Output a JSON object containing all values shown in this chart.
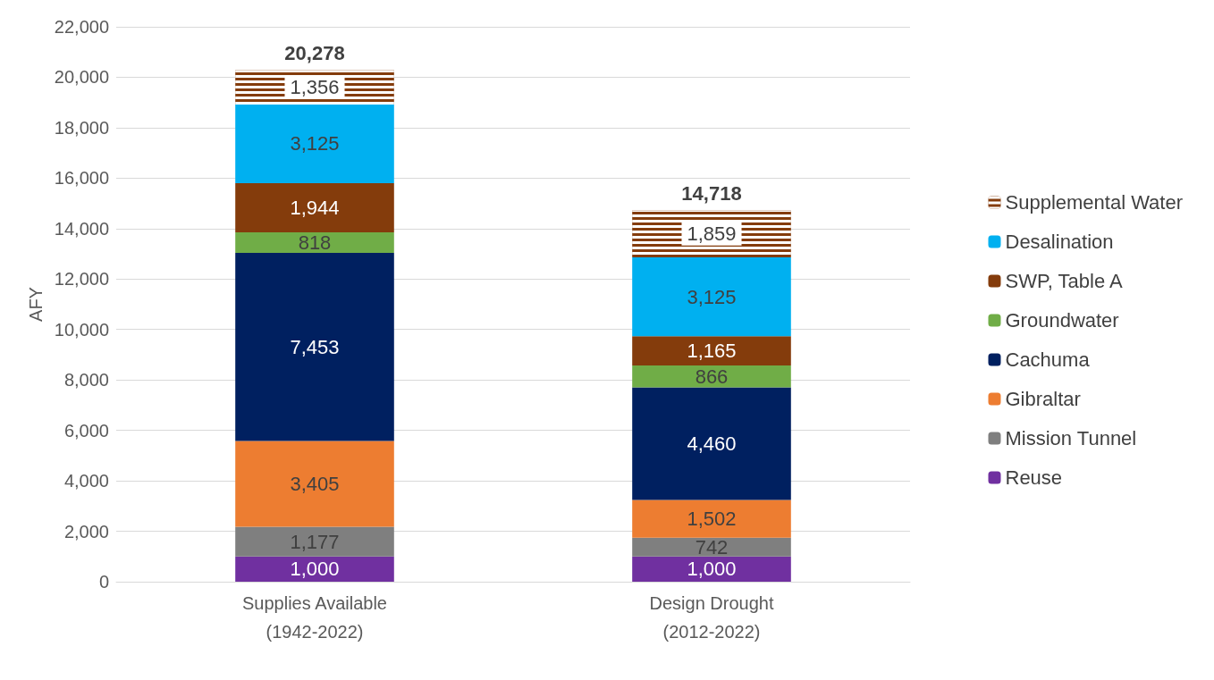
{
  "chart_data": {
    "type": "bar",
    "stacked": true,
    "ylabel": "AFY",
    "categories": [
      "Supplies Available\n(1942-2022)",
      "Design Drought\n(2012-2022)"
    ],
    "series": [
      {
        "name": "Reuse",
        "color": "#7030a0",
        "values": [
          1000,
          1000
        ],
        "value_labels": [
          "1,000",
          "1,000"
        ]
      },
      {
        "name": "Mission Tunnel",
        "color": "#7f7f7f",
        "values": [
          1177,
          742
        ],
        "value_labels": [
          "1,177",
          "742"
        ]
      },
      {
        "name": "Gibraltar",
        "color": "#ed7d31",
        "values": [
          3405,
          1502
        ],
        "value_labels": [
          "3,405",
          "1,502"
        ]
      },
      {
        "name": "Cachuma",
        "color": "#002060",
        "values": [
          7453,
          4460
        ],
        "value_labels": [
          "7,453",
          "4,460"
        ]
      },
      {
        "name": "Groundwater",
        "color": "#70ad47",
        "values": [
          818,
          866
        ],
        "value_labels": [
          "818",
          "866"
        ]
      },
      {
        "name": "SWP, Table A",
        "color": "#843c0c",
        "values": [
          1944,
          1165
        ],
        "value_labels": [
          "1,944",
          "1,165"
        ]
      },
      {
        "name": "Desalination",
        "color": "#00b0f0",
        "values": [
          3125,
          3125
        ],
        "value_labels": [
          "3,125",
          "3,125"
        ]
      },
      {
        "name": "Supplemental Water",
        "color": "#843c0c",
        "values": [
          1356,
          1859
        ],
        "value_labels": [
          "1,356",
          "1,859"
        ]
      }
    ],
    "totals": [
      "20,278",
      "14,718"
    ],
    "ylim": [
      0,
      22000
    ],
    "yticks": [
      0,
      {
        "value": 2000,
        "label": "2,000"
      },
      {
        "value": 4000,
        "label": "4,000"
      },
      {
        "value": 6000,
        "label": "6,000"
      },
      {
        "value": 8000,
        "label": "8,000"
      },
      {
        "value": 10000,
        "label": "10,000"
      },
      {
        "value": 12000,
        "label": "12,000"
      },
      {
        "value": 14000,
        "label": "14,000"
      },
      {
        "value": 16000,
        "label": "16,000"
      },
      {
        "value": 18000,
        "label": "18,000"
      },
      {
        "value": 20000,
        "label": "20,000"
      },
      {
        "value": 22000,
        "label": "22,000"
      }
    ],
    "grid": "y",
    "legend": "right"
  }
}
